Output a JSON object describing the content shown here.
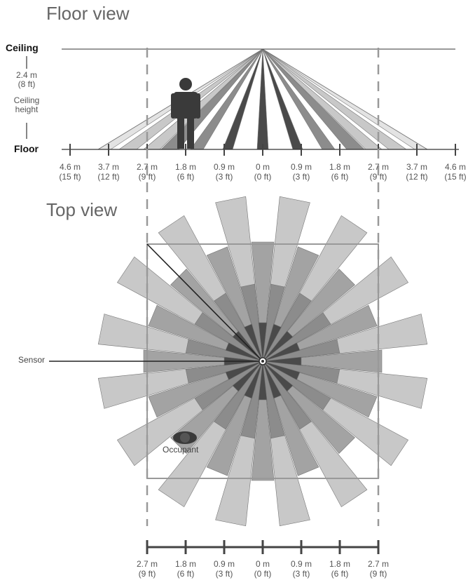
{
  "floor_view": {
    "title": "Floor view",
    "ceiling_label": "Ceiling",
    "floor_label": "Floor",
    "height_value_m": "2.4 m",
    "height_value_ft": "(8 ft)",
    "height_caption_1": "Ceiling",
    "height_caption_2": "height",
    "ticks": [
      {
        "m": "4.6 m",
        "ft": "(15 ft)"
      },
      {
        "m": "3.7 m",
        "ft": "(12 ft)"
      },
      {
        "m": "2.7 m",
        "ft": "(9 ft)"
      },
      {
        "m": "1.8 m",
        "ft": "(6 ft)"
      },
      {
        "m": "0.9 m",
        "ft": "(3 ft)"
      },
      {
        "m": "0 m",
        "ft": "(0 ft)"
      },
      {
        "m": "0.9 m",
        "ft": "(3 ft)"
      },
      {
        "m": "1.8 m",
        "ft": "(6 ft)"
      },
      {
        "m": "2.7 m",
        "ft": "(9 ft)"
      },
      {
        "m": "3.7 m",
        "ft": "(12 ft)"
      },
      {
        "m": "4.6 m",
        "ft": "(15 ft)"
      }
    ]
  },
  "top_view": {
    "title": "Top view",
    "sensor_label": "Sensor",
    "occupant_label": "Occupant",
    "ticks": [
      {
        "m": "2.7 m",
        "ft": "(9 ft)"
      },
      {
        "m": "1.8 m",
        "ft": "(6 ft)"
      },
      {
        "m": "0.9 m",
        "ft": "(3 ft)"
      },
      {
        "m": "0 m",
        "ft": "(0 ft)"
      },
      {
        "m": "0.9 m",
        "ft": "(3 ft)"
      },
      {
        "m": "1.8 m",
        "ft": "(6 ft)"
      },
      {
        "m": "2.7 m",
        "ft": "(9 ft)"
      }
    ]
  },
  "icons": [
    "person-icon",
    "occupant-icon",
    "sensor-icon"
  ],
  "colors": {
    "beam_dark": "#4a4a4a",
    "beam_mid": "#8c8c8c",
    "beam_light": "#c8c8c8",
    "beam_pale": "#e3e3e3",
    "outline": "#777777",
    "axis": "#444444"
  }
}
